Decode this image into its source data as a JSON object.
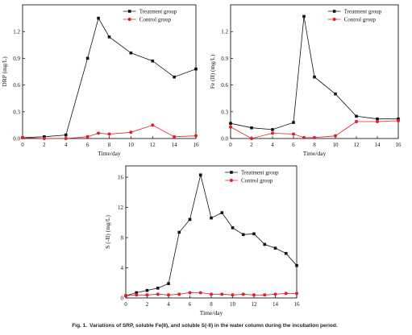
{
  "caption": {
    "label": "Fig. 1.",
    "text": "Variations of SRP, soluble Fe(II), and soluble S(-II) in the water column during the incubation period."
  },
  "colors": {
    "treatment": "#111111",
    "control": "#e0202a",
    "axis": "#000000"
  },
  "chart_data": [
    {
      "type": "line",
      "xlabel": "Time/day",
      "ylabel": "DRP (mg/L)",
      "xlim": [
        0,
        16
      ],
      "ylim": [
        0,
        1.5
      ],
      "xticks": [
        0,
        2,
        4,
        6,
        8,
        10,
        12,
        14,
        16
      ],
      "yticks": [
        0.0,
        0.3,
        0.6,
        0.9,
        1.2
      ],
      "ytick_labels": [
        "0.0",
        "0.3",
        "0.6",
        "0.9",
        "1.2"
      ],
      "legend": "top-right",
      "series": [
        {
          "name": "Treatment group",
          "marker": "square",
          "x": [
            0,
            2,
            4,
            6,
            7,
            8,
            10,
            12,
            14,
            16
          ],
          "y": [
            0.01,
            0.02,
            0.04,
            0.9,
            1.35,
            1.14,
            0.96,
            0.87,
            0.69,
            0.78
          ]
        },
        {
          "name": "Control group",
          "marker": "circle",
          "x": [
            0,
            2,
            4,
            6,
            7,
            8,
            10,
            12,
            14,
            16
          ],
          "y": [
            0.01,
            0.0,
            0.0,
            0.02,
            0.06,
            0.05,
            0.07,
            0.15,
            0.02,
            0.03
          ]
        }
      ]
    },
    {
      "type": "line",
      "xlabel": "Time/day",
      "ylabel": "Fe (II) (mg/L)",
      "xlim": [
        0,
        16
      ],
      "ylim": [
        0,
        1.5
      ],
      "xticks": [
        0,
        2,
        4,
        6,
        8,
        10,
        12,
        14,
        16
      ],
      "yticks": [
        0.0,
        0.3,
        0.6,
        0.9,
        1.2
      ],
      "ytick_labels": [
        "0.0",
        "0.3",
        "0.6",
        "0.9",
        "1.2"
      ],
      "legend": "top-right",
      "series": [
        {
          "name": "Treatment group",
          "marker": "square",
          "x": [
            0,
            2,
            4,
            6,
            7,
            8,
            10,
            12,
            14,
            16
          ],
          "y": [
            0.17,
            0.12,
            0.1,
            0.18,
            1.37,
            0.69,
            0.5,
            0.25,
            0.22,
            0.22
          ]
        },
        {
          "name": "Control group",
          "marker": "circle",
          "x": [
            0,
            2,
            4,
            6,
            7,
            8,
            10,
            12,
            14,
            16
          ],
          "y": [
            0.13,
            0.0,
            0.06,
            0.05,
            0.01,
            0.01,
            0.03,
            0.19,
            0.19,
            0.2
          ]
        }
      ]
    },
    {
      "type": "line",
      "xlabel": "Time/day",
      "ylabel": "S (-II) (mg/L)",
      "xlim": [
        0,
        16
      ],
      "ylim": [
        0,
        17.5
      ],
      "xticks": [
        0,
        2,
        4,
        6,
        8,
        10,
        12,
        14,
        16
      ],
      "yticks": [
        0,
        4,
        8,
        12,
        16
      ],
      "ytick_labels": [
        "0",
        "4",
        "8",
        "12",
        "16"
      ],
      "legend": "top-right",
      "series": [
        {
          "name": "Treatment group",
          "marker": "square",
          "x": [
            0,
            1,
            2,
            3,
            4,
            5,
            6,
            7,
            8,
            9,
            10,
            11,
            12,
            13,
            14,
            15,
            16
          ],
          "y": [
            0.3,
            0.7,
            1.0,
            1.3,
            1.9,
            8.7,
            10.4,
            16.3,
            10.6,
            11.3,
            9.3,
            8.4,
            8.5,
            7.1,
            6.6,
            5.9,
            4.3
          ]
        },
        {
          "name": "Control group",
          "marker": "circle",
          "x": [
            0,
            1,
            2,
            3,
            4,
            5,
            6,
            7,
            8,
            9,
            10,
            11,
            12,
            13,
            14,
            15,
            16
          ],
          "y": [
            0.3,
            0.4,
            0.4,
            0.5,
            0.4,
            0.5,
            0.7,
            0.7,
            0.5,
            0.5,
            0.4,
            0.5,
            0.4,
            0.4,
            0.5,
            0.6,
            0.6
          ]
        }
      ]
    }
  ]
}
